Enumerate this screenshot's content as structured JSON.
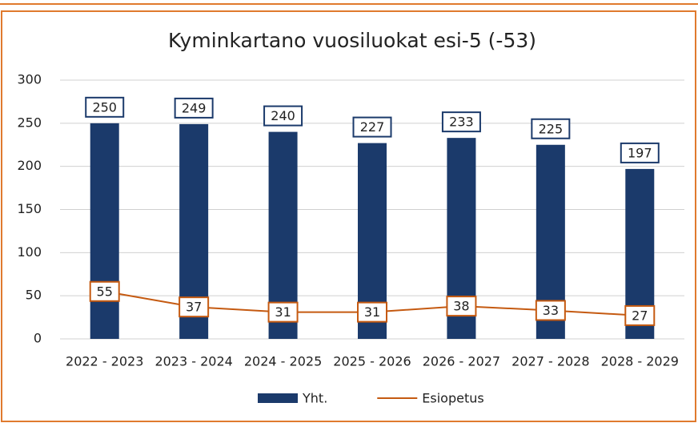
{
  "chart_data": {
    "type": "bar",
    "title": "Kyminkartano vuosiluokat esi-5 (-53)",
    "categories": [
      "2022 - 2023",
      "2023 - 2024",
      "2024 - 2025",
      "2025 - 2026",
      "2026 - 2027",
      "2027 - 2028",
      "2028 - 2029"
    ],
    "series": [
      {
        "name": "Yht.",
        "type": "bar",
        "color": "#1b3a6b",
        "values": [
          250,
          249,
          240,
          227,
          233,
          225,
          197
        ]
      },
      {
        "name": "Esiopetus",
        "type": "line",
        "color": "#c55a11",
        "values": [
          55,
          37,
          31,
          31,
          38,
          33,
          27
        ]
      }
    ],
    "ylim": [
      0,
      300
    ],
    "yticks": [
      0,
      50,
      100,
      150,
      200,
      250,
      300
    ],
    "grid": true,
    "legend": "bottom"
  }
}
